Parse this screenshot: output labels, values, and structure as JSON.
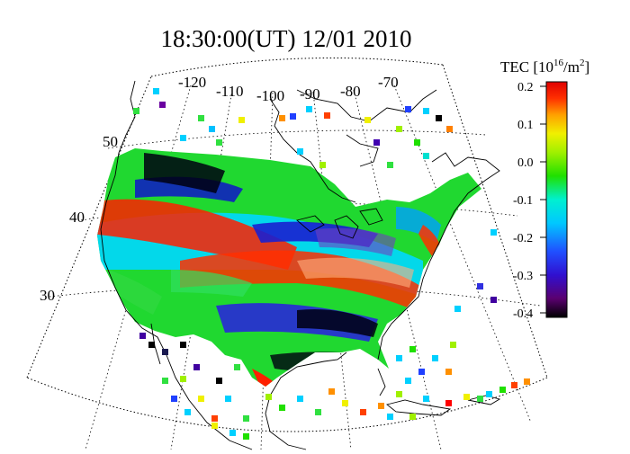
{
  "title": "18:30:00(UT)  12/01 2010",
  "longitude_labels": [
    "-120",
    "-110",
    "-100",
    "-90",
    "-80",
    "-70"
  ],
  "latitude_labels": [
    "50",
    "40",
    "30"
  ],
  "colorbar": {
    "title_prefix": "TEC [10",
    "title_exponent": "16",
    "title_mid": "/m",
    "title_exponent2": "2",
    "title_suffix": "]",
    "ticks": [
      "0.2",
      "0.1",
      "0.0",
      "-0.1",
      "-0.2",
      "-0.3",
      "-0.4"
    ],
    "range": [
      -0.4,
      0.2
    ],
    "colors": [
      "#000000",
      "#5a0070",
      "#3010d0",
      "#2050ff",
      "#00c8ff",
      "#00f0d0",
      "#20e000",
      "#a0f000",
      "#f0f000",
      "#ffa000",
      "#ff3000",
      "#e00000"
    ]
  }
}
